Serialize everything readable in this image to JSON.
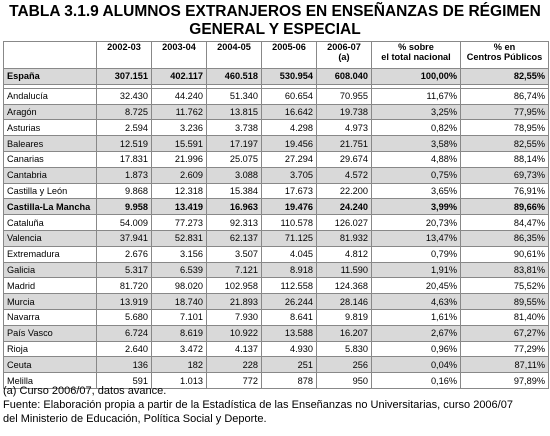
{
  "title_line1": "TABLA 3.1.9 ALUMNOS EXTRANJEROS EN ENSEÑANZAS DE RÉGIMEN",
  "title_line2": "GENERAL Y ESPECIAL",
  "headers": [
    "",
    "2002-03",
    "2003-04",
    "2004-05",
    "2005-06",
    "2006-07\n(a)",
    "% sobre\nel total nacional",
    "% en\nCentros Públicos"
  ],
  "rows": [
    {
      "name": "España",
      "v": [
        "307.151",
        "402.117",
        "460.518",
        "530.954",
        "608.040",
        "100,00%",
        "82,55%"
      ],
      "shade": true,
      "bold": true,
      "spacer_after": true
    },
    {
      "name": "Andalucía",
      "v": [
        "32.430",
        "44.240",
        "51.340",
        "60.654",
        "70.955",
        "11,67%",
        "86,74%"
      ],
      "shade": false,
      "bold": false
    },
    {
      "name": "Aragón",
      "v": [
        "8.725",
        "11.762",
        "13.815",
        "16.642",
        "19.738",
        "3,25%",
        "77,95%"
      ],
      "shade": true,
      "bold": false
    },
    {
      "name": "Asturias",
      "v": [
        "2.594",
        "3.236",
        "3.738",
        "4.298",
        "4.973",
        "0,82%",
        "78,95%"
      ],
      "shade": false,
      "bold": false
    },
    {
      "name": "Baleares",
      "v": [
        "12.519",
        "15.591",
        "17.197",
        "19.456",
        "21.751",
        "3,58%",
        "82,55%"
      ],
      "shade": true,
      "bold": false
    },
    {
      "name": "Canarias",
      "v": [
        "17.831",
        "21.996",
        "25.075",
        "27.294",
        "29.674",
        "4,88%",
        "88,14%"
      ],
      "shade": false,
      "bold": false
    },
    {
      "name": "Cantabria",
      "v": [
        "1.873",
        "2.609",
        "3.088",
        "3.705",
        "4.572",
        "0,75%",
        "69,73%"
      ],
      "shade": true,
      "bold": false
    },
    {
      "name": "Castilla y León",
      "v": [
        "9.868",
        "12.318",
        "15.384",
        "17.673",
        "22.200",
        "3,65%",
        "76,91%"
      ],
      "shade": false,
      "bold": false
    },
    {
      "name": "Castilla-La Mancha",
      "v": [
        "9.958",
        "13.419",
        "16.963",
        "19.476",
        "24.240",
        "3,99%",
        "89,66%"
      ],
      "shade": true,
      "bold": true
    },
    {
      "name": "Cataluña",
      "v": [
        "54.009",
        "77.273",
        "92.313",
        "110.578",
        "126.027",
        "20,73%",
        "84,47%"
      ],
      "shade": false,
      "bold": false
    },
    {
      "name": "Valencia",
      "v": [
        "37.941",
        "52.831",
        "62.137",
        "71.125",
        "81.932",
        "13,47%",
        "86,35%"
      ],
      "shade": true,
      "bold": false
    },
    {
      "name": "Extremadura",
      "v": [
        "2.676",
        "3.156",
        "3.507",
        "4.045",
        "4.812",
        "0,79%",
        "90,61%"
      ],
      "shade": false,
      "bold": false
    },
    {
      "name": "Galicia",
      "v": [
        "5.317",
        "6.539",
        "7.121",
        "8.918",
        "11.590",
        "1,91%",
        "83,81%"
      ],
      "shade": true,
      "bold": false
    },
    {
      "name": "Madrid",
      "v": [
        "81.720",
        "98.020",
        "102.958",
        "112.558",
        "124.368",
        "20,45%",
        "75,52%"
      ],
      "shade": false,
      "bold": false
    },
    {
      "name": "Murcia",
      "v": [
        "13.919",
        "18.740",
        "21.893",
        "26.244",
        "28.146",
        "4,63%",
        "89,55%"
      ],
      "shade": true,
      "bold": false
    },
    {
      "name": "Navarra",
      "v": [
        "5.680",
        "7.101",
        "7.930",
        "8.641",
        "9.819",
        "1,61%",
        "81,40%"
      ],
      "shade": false,
      "bold": false
    },
    {
      "name": "País Vasco",
      "v": [
        "6.724",
        "8.619",
        "10.922",
        "13.588",
        "16.207",
        "2,67%",
        "67,27%"
      ],
      "shade": true,
      "bold": false
    },
    {
      "name": "Rioja",
      "v": [
        "2.640",
        "3.472",
        "4.137",
        "4.930",
        "5.830",
        "0,96%",
        "77,29%"
      ],
      "shade": false,
      "bold": false
    },
    {
      "name": "Ceuta",
      "v": [
        "136",
        "182",
        "228",
        "251",
        "256",
        "0,04%",
        "87,11%"
      ],
      "shade": true,
      "bold": false
    },
    {
      "name": "Melilla",
      "v": [
        "591",
        "1.013",
        "772",
        "878",
        "950",
        "0,16%",
        "97,89%"
      ],
      "shade": false,
      "bold": false
    }
  ],
  "note_a": "(a) Curso 2006/07, datos avance.",
  "source_line1": "Fuente: Elaboración propia a partir de la Estadística de las Enseñanzas no Universitarias, curso 2006/07",
  "source_line2": "del Ministerio de Educación, Política Social y Deporte."
}
